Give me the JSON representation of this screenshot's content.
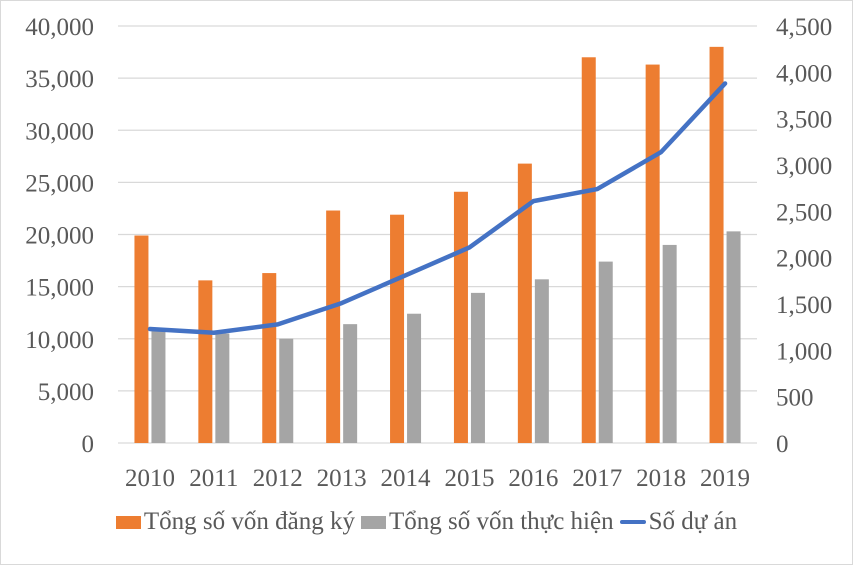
{
  "chart_data": {
    "type": "bar",
    "combo": "bar+line (secondary axis)",
    "title": "",
    "xlabel": "",
    "ylabel": "",
    "categories": [
      "2010",
      "2011",
      "2012",
      "2013",
      "2014",
      "2015",
      "2016",
      "2017",
      "2018",
      "2019"
    ],
    "series": [
      {
        "name": "Tổng số vốn đăng ký",
        "type": "bar",
        "axis": "left",
        "color": "#ED7D31",
        "values": [
          19900,
          15600,
          16300,
          22300,
          21900,
          24100,
          26800,
          37000,
          36300,
          38000
        ]
      },
      {
        "name": "Tổng số vốn thực hiện",
        "type": "bar",
        "axis": "left",
        "color": "#A5A5A5",
        "values": [
          10800,
          10500,
          10000,
          11400,
          12400,
          14400,
          15700,
          17400,
          19000,
          20300
        ]
      },
      {
        "name": "Số dự án",
        "type": "line",
        "axis": "right",
        "color": "#4472C4",
        "values": [
          1230,
          1190,
          1280,
          1510,
          1810,
          2110,
          2610,
          2740,
          3140,
          3880
        ]
      }
    ],
    "ylim": [
      0,
      40000
    ],
    "ylim_right": [
      0,
      4500
    ],
    "yticks_left": [
      "0",
      "5,000",
      "10,000",
      "15,000",
      "20,000",
      "25,000",
      "30,000",
      "35,000",
      "40,000"
    ],
    "yticks_right": [
      "0",
      "500",
      "1,000",
      "1,500",
      "2,000",
      "2,500",
      "3,000",
      "3,500",
      "4,000",
      "4,500"
    ],
    "grid": true,
    "legend_position": "bottom"
  },
  "legend": {
    "items": [
      {
        "label": "Tổng số vốn đăng ký",
        "color": "#ED7D31",
        "kind": "box"
      },
      {
        "label": "Tổng số vốn thực hiện",
        "color": "#A5A5A5",
        "kind": "box"
      },
      {
        "label": "Số dự án",
        "color": "#4472C4",
        "kind": "line"
      }
    ]
  }
}
